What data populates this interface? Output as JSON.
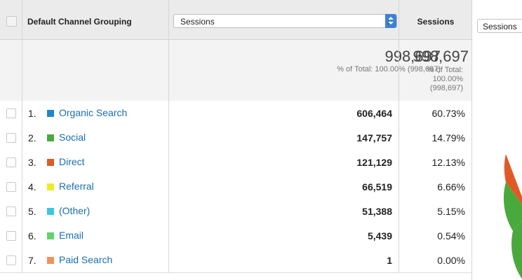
{
  "header": {
    "dimension_title": "Default Channel Grouping",
    "metric_select": "Sessions",
    "metric_column": "Sessions",
    "side_button": "Sessions"
  },
  "totals": {
    "sessions_a": "998,697",
    "sessions_a_sub": "% of Total: 100.00% (998,697)",
    "sessions_b": "998,697",
    "sessions_b_sub_1": "% of Total:",
    "sessions_b_sub_2": "100.00%",
    "sessions_b_sub_3": "(998,697)"
  },
  "rows": [
    {
      "num": "1.",
      "name": "Organic Search",
      "sessions": "606,464",
      "pct": "60.73%",
      "color": "#1f88c9"
    },
    {
      "num": "2.",
      "name": "Social",
      "sessions": "147,757",
      "pct": "14.79%",
      "color": "#4aa93c"
    },
    {
      "num": "3.",
      "name": "Direct",
      "sessions": "121,129",
      "pct": "12.13%",
      "color": "#e05a26"
    },
    {
      "num": "4.",
      "name": "Referral",
      "sessions": "66,519",
      "pct": "6.66%",
      "color": "#ecec2a"
    },
    {
      "num": "5.",
      "name": "(Other)",
      "sessions": "51,388",
      "pct": "5.15%",
      "color": "#3cc6e2"
    },
    {
      "num": "6.",
      "name": "Email",
      "sessions": "5,439",
      "pct": "0.54%",
      "color": "#5fd36a"
    },
    {
      "num": "7.",
      "name": "Paid Search",
      "sessions": "1",
      "pct": "0.00%",
      "color": "#f0935a"
    }
  ],
  "pie": {
    "colors": {
      "direct": "#e05a26",
      "social": "#4aa93c"
    }
  }
}
